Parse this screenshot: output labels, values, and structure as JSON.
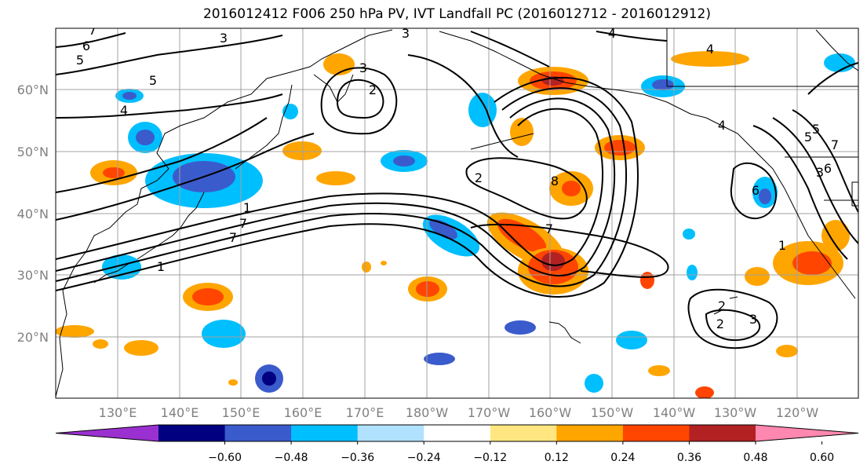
{
  "title": "2016012412 F006 250 hPa PV, IVT Landfall PC (2016012712 - 2016012912)",
  "map": {
    "lat_labels": [
      "60°N",
      "50°N",
      "40°N",
      "30°N",
      "20°N"
    ],
    "lon_labels": [
      "130°E",
      "140°E",
      "150°E",
      "160°E",
      "170°E",
      "180°W",
      "170°W",
      "160°W",
      "150°W",
      "140°W",
      "130°W",
      "120°W"
    ],
    "contour_labels": [
      "7",
      "6",
      "5",
      "5",
      "4",
      "3",
      "3",
      "4",
      "4",
      "3",
      "2",
      "8",
      "7",
      "7",
      "1",
      "7",
      "1",
      "2",
      "3",
      "6",
      "5",
      "7",
      "6",
      "5",
      "4",
      "2",
      "3",
      "2",
      "1"
    ],
    "colors": {
      "ocean": "#ffffff",
      "contour": "#000000",
      "coast": "#000000",
      "grid": "#a0a0a0"
    }
  },
  "colorbar": {
    "ticks": [
      "-0.60",
      "-0.48",
      "-0.36",
      "-0.24",
      "-0.12",
      "0.12",
      "0.24",
      "0.36",
      "0.48",
      "0.60"
    ],
    "colors": [
      "#9b30d0",
      "#000080",
      "#3a5bcc",
      "#00bfff",
      "#b0e2ff",
      "#ffffff",
      "#ffe680",
      "#ffa500",
      "#ff4500",
      "#b22222",
      "#ff88b0"
    ],
    "extend": "both"
  }
}
